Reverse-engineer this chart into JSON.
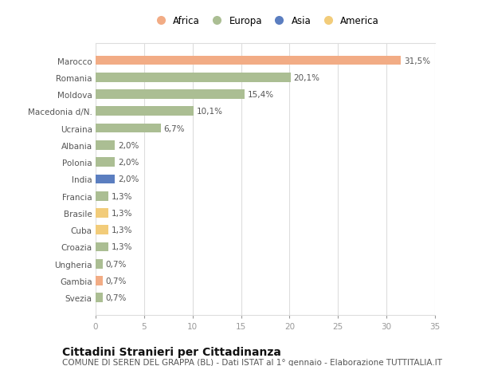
{
  "countries": [
    "Marocco",
    "Romania",
    "Moldova",
    "Macedonia d/N.",
    "Ucraina",
    "Albania",
    "Polonia",
    "India",
    "Francia",
    "Brasile",
    "Cuba",
    "Croazia",
    "Ungheria",
    "Gambia",
    "Svezia"
  ],
  "values": [
    31.5,
    20.1,
    15.4,
    10.1,
    6.7,
    2.0,
    2.0,
    2.0,
    1.3,
    1.3,
    1.3,
    1.3,
    0.7,
    0.7,
    0.7
  ],
  "labels": [
    "31,5%",
    "20,1%",
    "15,4%",
    "10,1%",
    "6,7%",
    "2,0%",
    "2,0%",
    "2,0%",
    "1,3%",
    "1,3%",
    "1,3%",
    "1,3%",
    "0,7%",
    "0,7%",
    "0,7%"
  ],
  "continents": [
    "Africa",
    "Europa",
    "Europa",
    "Europa",
    "Europa",
    "Europa",
    "Europa",
    "Asia",
    "Europa",
    "America",
    "America",
    "Europa",
    "Europa",
    "Africa",
    "Europa"
  ],
  "colors": {
    "Africa": "#F2AC85",
    "Europa": "#ABBE93",
    "Asia": "#5B7EC0",
    "America": "#F2CC7A"
  },
  "legend_order": [
    "Africa",
    "Europa",
    "Asia",
    "America"
  ],
  "title": "Cittadini Stranieri per Cittadinanza",
  "subtitle": "COMUNE DI SEREN DEL GRAPPA (BL) - Dati ISTAT al 1° gennaio - Elaborazione TUTTITALIA.IT",
  "xlim": [
    0,
    35
  ],
  "xticks": [
    0,
    5,
    10,
    15,
    20,
    25,
    30,
    35
  ],
  "background_color": "#ffffff",
  "grid_color": "#dddddd",
  "title_fontsize": 10,
  "subtitle_fontsize": 7.5,
  "label_fontsize": 7.5,
  "ytick_fontsize": 7.5,
  "xtick_fontsize": 7.5,
  "bar_height": 0.55
}
